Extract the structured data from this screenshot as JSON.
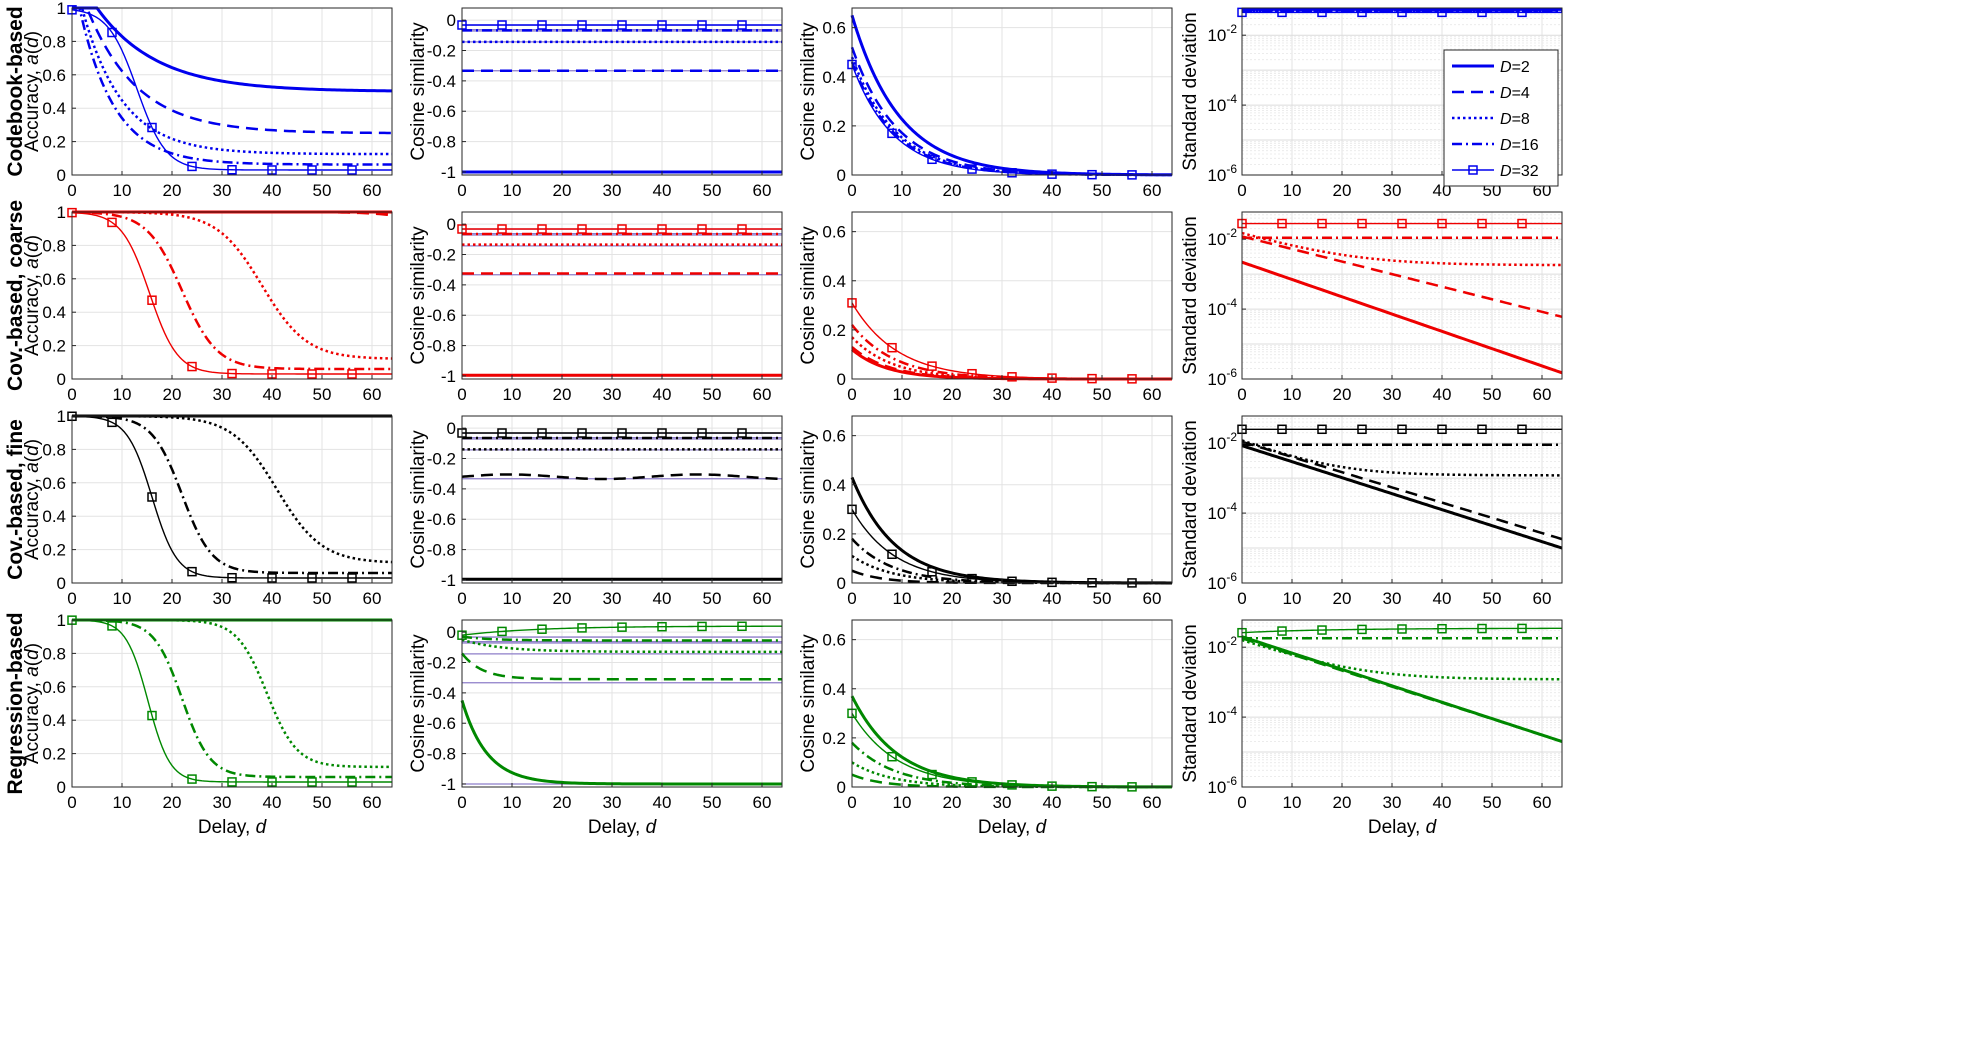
{
  "chart_data": {
    "type": "line",
    "layout": "4x4 small multiples",
    "rows": [
      {
        "label": "Codebook-based",
        "color": "#0000ee"
      },
      {
        "label": "Cov.-based, coarse",
        "color": "#ee0000"
      },
      {
        "label": "Cov.-based, fine",
        "color": "#000000"
      },
      {
        "label": "Regression-based",
        "color": "#008800"
      }
    ],
    "columns": [
      {
        "ylabel": "Accuracy, a(d)",
        "yscale": "linear",
        "ylim": [
          0,
          1
        ],
        "yticks": [
          0,
          0.2,
          0.4,
          0.6,
          0.8,
          1
        ],
        "ytick_labels": [
          "0",
          "0.2",
          "0.4",
          "0.6",
          "0.8",
          "1"
        ]
      },
      {
        "ylabel": "Cosine similarity",
        "yscale": "linear",
        "ylim": [
          -1.02,
          0.08
        ],
        "yticks": [
          -1,
          -0.8,
          -0.6,
          -0.4,
          -0.2,
          0
        ],
        "ytick_labels": [
          "-1",
          "-0.8",
          "-0.6",
          "-0.4",
          "-0.2",
          "0"
        ]
      },
      {
        "ylabel": "Cosine similarity",
        "yscale": "linear",
        "ylim": [
          0,
          0.68
        ],
        "yticks": [
          0,
          0.2,
          0.4,
          0.6
        ],
        "ytick_labels": [
          "0",
          "0.2",
          "0.4",
          "0.6"
        ]
      },
      {
        "ylabel": "Standard deviation",
        "yscale": "log",
        "ylim": [
          1e-06,
          0.06
        ],
        "yticks": [
          1e-06,
          0.0001,
          0.01
        ],
        "ytick_labels": [
          "10^-6",
          "10^-4",
          "10^-2"
        ]
      }
    ],
    "xlabel": "Delay,  d",
    "xlim": [
      0,
      64
    ],
    "xticks": [
      0,
      10,
      20,
      30,
      40,
      50,
      60
    ],
    "xtick_labels": [
      "0",
      "10",
      "20",
      "30",
      "40",
      "50",
      "60"
    ],
    "grid": true,
    "legend": {
      "placement": "top-right of row 1, column 4",
      "entries": [
        {
          "label": "D=2",
          "style": "solid-thick"
        },
        {
          "label": "D=4",
          "style": "dashed"
        },
        {
          "label": "D=8",
          "style": "dotted"
        },
        {
          "label": "D=16",
          "style": "dashdot"
        },
        {
          "label": "D=32",
          "style": "solid-marker-square"
        }
      ]
    },
    "reference_lines_col2": [
      -0.0323,
      -0.0625,
      -0.0714,
      -0.1429,
      -0.3333,
      -1.0
    ],
    "series_params": {
      "accuracy": {
        "codebook": {
          "D2": {
            "type": "exp",
            "start": 1,
            "end": 0.5,
            "tau": 12,
            "delay": 5
          },
          "D4": {
            "type": "exp",
            "start": 1,
            "end": 0.25,
            "tau": 10,
            "delay": 3
          },
          "D8": {
            "type": "exp",
            "start": 1,
            "end": 0.125,
            "tau": 8,
            "delay": 2
          },
          "D16": {
            "type": "exp",
            "start": 1,
            "end": 0.0625,
            "tau": 7,
            "delay": 1.5
          },
          "D32": {
            "type": "sig",
            "end": 0.03,
            "mid": 13,
            "width": 2.9
          }
        },
        "coarse": {
          "D2": {
            "type": "flat",
            "value": 1
          },
          "D4": {
            "type": "sig",
            "end": 0.5,
            "mid": 80,
            "width": 5
          },
          "D8": {
            "type": "sig",
            "end": 0.12,
            "mid": 38,
            "width": 4.5
          },
          "D16": {
            "type": "sig",
            "end": 0.06,
            "mid": 22,
            "width": 3.5
          },
          "D32": {
            "type": "sig",
            "end": 0.03,
            "mid": 15.5,
            "width": 2.8
          }
        },
        "fine": {
          "D2": {
            "type": "flat",
            "value": 1
          },
          "D4": {
            "type": "flat",
            "value": 1
          },
          "D8": {
            "type": "sig",
            "end": 0.12,
            "mid": 41,
            "width": 4.5
          },
          "D16": {
            "type": "sig",
            "end": 0.06,
            "mid": 22,
            "width": 3
          },
          "D32": {
            "type": "sig",
            "end": 0.03,
            "mid": 16,
            "width": 2.5
          }
        },
        "regression": {
          "D2": {
            "type": "flat",
            "value": 1
          },
          "D4": {
            "type": "flat",
            "value": 1
          },
          "D8": {
            "type": "sig",
            "end": 0.12,
            "mid": 39,
            "width": 3
          },
          "D16": {
            "type": "sig",
            "end": 0.06,
            "mid": 22,
            "width": 2.8
          },
          "D32": {
            "type": "sig",
            "end": 0.03,
            "mid": 15.2,
            "width": 2.2
          }
        }
      },
      "cos_offdiag": {
        "codebook": {
          "D2": {
            "type": "flat",
            "value": -1.0
          },
          "D4": {
            "type": "flat",
            "value": -0.333
          },
          "D8": {
            "type": "flat",
            "value": -0.143
          },
          "D16": {
            "type": "flat",
            "value": -0.067
          },
          "D32": {
            "type": "flat",
            "value": -0.032
          }
        },
        "coarse": {
          "D2": {
            "type": "flat",
            "value": -0.995
          },
          "D4": {
            "type": "flat",
            "value": -0.325
          },
          "D8": {
            "type": "flat",
            "value": -0.135
          },
          "D16": {
            "type": "flat",
            "value": -0.065
          },
          "D32": {
            "type": "flat",
            "value": -0.032
          }
        },
        "fine": {
          "D2": {
            "type": "flat",
            "value": -0.995
          },
          "D4": {
            "type": "wave",
            "value": -0.32,
            "amp": 0.015
          },
          "D8": {
            "type": "flat",
            "value": -0.14
          },
          "D16": {
            "type": "flat",
            "value": -0.065
          },
          "D32": {
            "type": "flat",
            "value": -0.032
          }
        },
        "regression": {
          "D2": {
            "type": "exp",
            "start": -0.45,
            "end": -1.0,
            "tau": 5,
            "delay": 0
          },
          "D4": {
            "type": "exp",
            "start": -0.14,
            "end": -0.31,
            "tau": 4,
            "delay": 0
          },
          "D8": {
            "type": "exp",
            "start": -0.05,
            "end": -0.13,
            "tau": 8,
            "delay": 0
          },
          "D16": {
            "type": "exp",
            "start": -0.03,
            "end": -0.055,
            "tau": 6,
            "delay": 0
          },
          "D32": {
            "type": "exp",
            "start": -0.02,
            "end": 0.04,
            "tau": 15,
            "delay": 0
          }
        }
      },
      "cos_diag": {
        "codebook": {
          "D2": {
            "type": "exp",
            "start": 0.65,
            "end": 0,
            "tau": 9.5,
            "delay": 0
          },
          "D4": {
            "type": "exp",
            "start": 0.52,
            "end": 0,
            "tau": 9,
            "delay": 0
          },
          "D8": {
            "type": "exp",
            "start": 0.48,
            "end": 0,
            "tau": 8.7,
            "delay": 0
          },
          "D16": {
            "type": "exp",
            "start": 0.46,
            "end": 0,
            "tau": 8.5,
            "delay": 0
          },
          "D32": {
            "type": "exp",
            "start": 0.45,
            "end": 0,
            "tau": 8.2,
            "delay": 0
          }
        },
        "coarse": {
          "D2": {
            "type": "exp",
            "start": 0.12,
            "end": 0,
            "tau": 7,
            "delay": 0
          },
          "D4": {
            "type": "exp",
            "start": 0.13,
            "end": 0,
            "tau": 7.5,
            "delay": 0
          },
          "D8": {
            "type": "exp",
            "start": 0.17,
            "end": 0,
            "tau": 8,
            "delay": 0
          },
          "D16": {
            "type": "exp",
            "start": 0.22,
            "end": 0,
            "tau": 8.5,
            "delay": 0
          },
          "D32": {
            "type": "exp",
            "start": 0.31,
            "end": 0,
            "tau": 9,
            "delay": 0
          }
        },
        "fine": {
          "D2": {
            "type": "exp",
            "start": 0.43,
            "end": 0,
            "tau": 8.5,
            "delay": 0
          },
          "D4": {
            "type": "exp",
            "start": 0.05,
            "end": 0,
            "tau": 6,
            "delay": 0
          },
          "D8": {
            "type": "exp",
            "start": 0.11,
            "end": 0,
            "tau": 8,
            "delay": 0
          },
          "D16": {
            "type": "exp",
            "start": 0.18,
            "end": 0,
            "tau": 8,
            "delay": 0
          },
          "D32": {
            "type": "exp",
            "start": 0.3,
            "end": 0,
            "tau": 8.5,
            "delay": 0
          }
        },
        "regression": {
          "D2": {
            "type": "exp",
            "start": 0.37,
            "end": 0,
            "tau": 9,
            "delay": 0
          },
          "D4": {
            "type": "exp",
            "start": 0.05,
            "end": 0,
            "tau": 6,
            "delay": 0
          },
          "D8": {
            "type": "exp",
            "start": 0.1,
            "end": 0,
            "tau": 8,
            "delay": 0
          },
          "D16": {
            "type": "exp",
            "start": 0.18,
            "end": 0,
            "tau": 8.5,
            "delay": 0
          },
          "D32": {
            "type": "exp",
            "start": 0.3,
            "end": 0,
            "tau": 9,
            "delay": 0
          }
        }
      },
      "std": {
        "codebook": {
          "D2": {
            "type": "flat",
            "value": 0.055
          },
          "D4": {
            "type": "flat",
            "value": 0.052
          },
          "D8": {
            "type": "flat",
            "value": 0.05
          },
          "D16": {
            "type": "flat",
            "value": 0.048
          },
          "D32": {
            "type": "flat",
            "value": 0.045
          }
        },
        "coarse": {
          "D2": {
            "type": "loglin",
            "start": 0.0022,
            "end": 1.5e-06
          },
          "D4": {
            "type": "loglin",
            "start": 0.012,
            "end": 6e-05
          },
          "D8": {
            "type": "exp",
            "start": 0.015,
            "end": 0.0018,
            "tau": 10,
            "delay": 0
          },
          "D16": {
            "type": "flat",
            "value": 0.011
          },
          "D32": {
            "type": "flat",
            "value": 0.028
          }
        },
        "fine": {
          "D2": {
            "type": "loglin",
            "start": 0.0085,
            "end": 1e-05
          },
          "D4": {
            "type": "loglin",
            "start": 0.011,
            "end": 1.8e-05
          },
          "D8": {
            "type": "exp",
            "start": 0.012,
            "end": 0.0012,
            "tau": 8,
            "delay": 0
          },
          "D16": {
            "type": "flat",
            "value": 0.009
          },
          "D32": {
            "type": "flat",
            "value": 0.025
          }
        },
        "regression": {
          "D2": {
            "type": "loglin",
            "start": 0.02,
            "end": 2e-05
          },
          "D4": {
            "type": "loglin",
            "start": 0.018,
            "end": 2e-05
          },
          "D8": {
            "type": "exp",
            "start": 0.016,
            "end": 0.0012,
            "tau": 9,
            "delay": 0
          },
          "D16": {
            "type": "flat",
            "value": 0.018
          },
          "D32": {
            "type": "exp",
            "start": 0.026,
            "end": 0.035,
            "tau": 20,
            "delay": 0
          }
        }
      }
    }
  }
}
